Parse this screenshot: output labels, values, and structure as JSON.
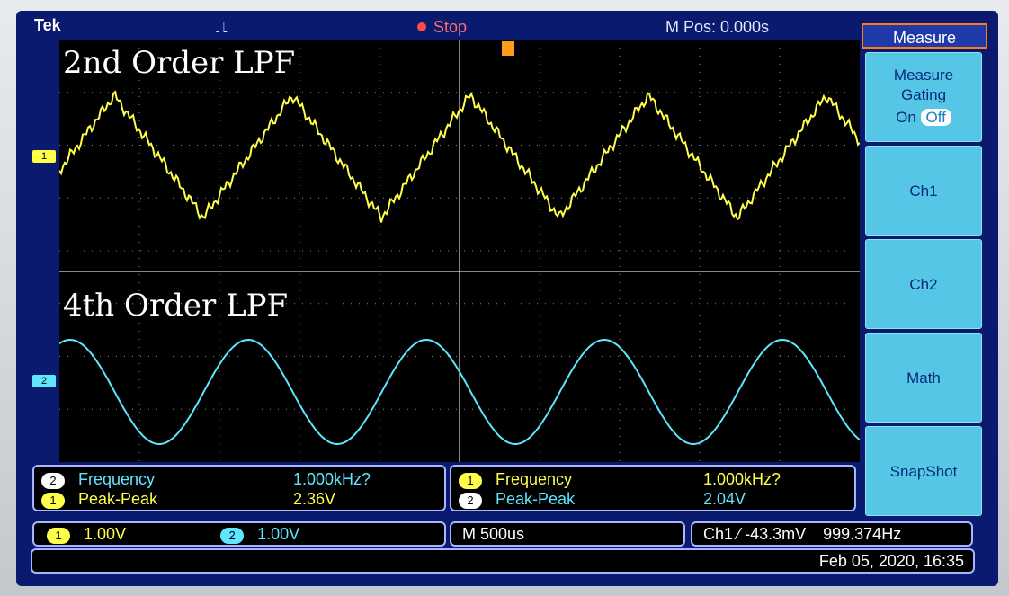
{
  "topbar": {
    "brand": "Tek",
    "trigger_icon": "pulse-icon",
    "run_state": "Stop",
    "position": "M Pos: 0.000s"
  },
  "display": {
    "top_label": "2nd Order LPF",
    "bottom_label": "4th Order LPF",
    "ch1_marker": "1",
    "ch2_marker": "2"
  },
  "menu": {
    "title": "Measure",
    "gating_label": "Measure Gating",
    "gating_on": "On",
    "gating_off": "Off",
    "buttons": [
      "Ch1",
      "Ch2",
      "Math",
      "SnapShot"
    ]
  },
  "measurements": {
    "left": [
      {
        "channel": "2",
        "label": "Frequency",
        "value": "1.000kHz?"
      },
      {
        "channel": "1",
        "label": "Peak-Peak",
        "value": "2.36V"
      }
    ],
    "right": [
      {
        "channel": "1",
        "label": "Frequency",
        "value": "1.000kHz?"
      },
      {
        "channel": "2",
        "label": "Peak-Peak",
        "value": "2.04V"
      }
    ]
  },
  "status": {
    "ch1_channel": "1",
    "ch1_scale": "1.00V",
    "ch2_channel": "2",
    "ch2_scale": "1.00V",
    "timebase": "M 500us",
    "trigger_source": "Ch1",
    "trigger_slope_icon": "rising-edge-icon",
    "trigger_level": "-43.3mV",
    "trigger_freq": "999.374Hz"
  },
  "datetime": "Feb 05, 2020, 16:35",
  "colors": {
    "ch1": "#ffff4a",
    "ch2": "#5ee6ff",
    "frame": "#0a1a6e",
    "menu_button": "#56c6e6"
  }
}
